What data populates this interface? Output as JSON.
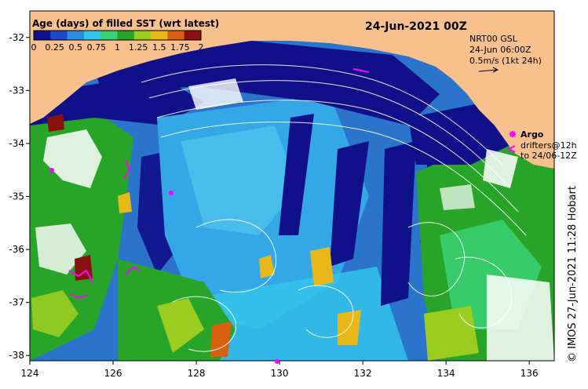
{
  "title": "24-Jun-2021 00Z",
  "legend": {
    "label": "Age (days) of filled SST (wrt latest)",
    "ticks": [
      "0",
      "0.25",
      "0.5",
      "0.75",
      "1",
      "1.25",
      "1.5",
      "1.75",
      "2"
    ],
    "colors": [
      "#10108a",
      "#1e46c8",
      "#2b8ce0",
      "#34c4ea",
      "#38d070",
      "#28a428",
      "#9acd20",
      "#e8b818",
      "#d86010",
      "#8a1010"
    ]
  },
  "current_info": {
    "line1": "NRT00 GSL",
    "line2": "24-Jun 06:00Z",
    "line3": "0.5m/s (1kt 24h)"
  },
  "argo_legend": {
    "argo_label": "Argo",
    "drifters_line1": "drifters@12h",
    "drifters_line2": "to 24/06-12Z"
  },
  "credit": "© IMOS 27-Jun-2021 11:28 Hobart",
  "axes": {
    "x_ticks": [
      "124",
      "126",
      "128",
      "130",
      "132",
      "134",
      "136"
    ],
    "y_ticks": [
      "-32",
      "-33",
      "-34",
      "-35",
      "-36",
      "-37",
      "-38"
    ],
    "lon_range": [
      124,
      136.6
    ],
    "lat_range": [
      -38.1,
      -31.5
    ]
  },
  "colors": {
    "land": "#f7c08c",
    "ocean_base": "#2a74cc",
    "argo": "#ff00ff"
  }
}
